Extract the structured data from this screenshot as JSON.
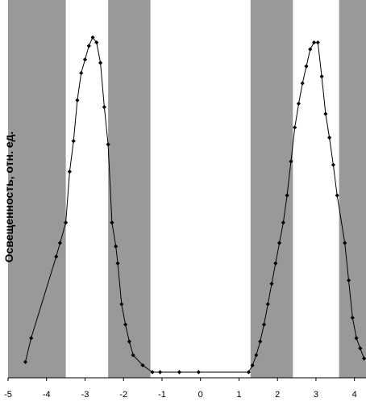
{
  "chart_data": {
    "type": "line",
    "title": "",
    "xlabel": "",
    "ylabel": "Освещенность, отн. ед.",
    "xlim": [
      -5,
      4.3
    ],
    "ylim": [
      0,
      1.0
    ],
    "xticks": [
      -5,
      -4,
      -3,
      -2,
      -1,
      0,
      1,
      2,
      3,
      4
    ],
    "yticks_shown": false,
    "grid": false,
    "legend": "none",
    "shaded_bands": [
      {
        "from": -5,
        "to": -3.5
      },
      {
        "from": -2.4,
        "to": -1.3
      },
      {
        "from": 1.3,
        "to": 2.4
      },
      {
        "from": 3.6,
        "to": 4.3
      }
    ],
    "series": [
      {
        "x": [
          -4.55,
          -4.4,
          -3.75,
          -3.65,
          -3.5,
          -3.4,
          -3.3,
          -3.2,
          -3.1,
          -3.0,
          -2.9,
          -2.8,
          -2.7,
          -2.6,
          -2.5,
          -2.4,
          -2.3,
          -2.2,
          -2.15,
          -2.05,
          -1.95,
          -1.85,
          -1.75,
          -1.5,
          -1.25,
          -1.05,
          -0.55,
          -0.05,
          1.25,
          1.35,
          1.45,
          1.55,
          1.65,
          1.75,
          1.85,
          1.95,
          2.05,
          2.15,
          2.25,
          2.35,
          2.45,
          2.55,
          2.65,
          2.75,
          2.85,
          2.95,
          3.05,
          3.15,
          3.25,
          3.35,
          3.45,
          3.55,
          3.75,
          3.85,
          3.95,
          4.05,
          4.15,
          4.25
        ],
        "y": [
          0.03,
          0.1,
          0.34,
          0.38,
          0.44,
          0.59,
          0.68,
          0.8,
          0.88,
          0.92,
          0.96,
          0.985,
          0.97,
          0.91,
          0.78,
          0.67,
          0.44,
          0.37,
          0.32,
          0.2,
          0.14,
          0.09,
          0.05,
          0.02,
          0.0,
          0.0,
          0.0,
          0.0,
          0.0,
          0.02,
          0.05,
          0.09,
          0.14,
          0.2,
          0.26,
          0.32,
          0.38,
          0.44,
          0.52,
          0.62,
          0.72,
          0.79,
          0.85,
          0.9,
          0.95,
          0.97,
          0.97,
          0.87,
          0.76,
          0.69,
          0.61,
          0.52,
          0.38,
          0.27,
          0.16,
          0.1,
          0.07,
          0.04
        ]
      }
    ],
    "colors": {
      "line": "#000000",
      "band": "#999999",
      "background": "#ffffff"
    }
  }
}
